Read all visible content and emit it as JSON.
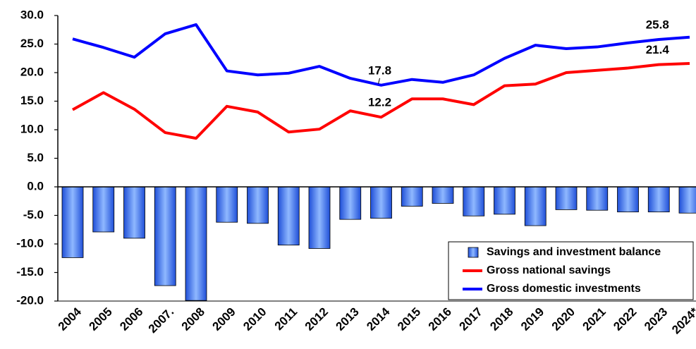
{
  "chart_data": {
    "type": "bar",
    "categories": [
      "2004",
      "2005",
      "2006",
      "2007.",
      "2008",
      "2009",
      "2010",
      "2011",
      "2012",
      "2013",
      "2014",
      "2015",
      "2016",
      "2017",
      "2018",
      "2019",
      "2020",
      "2021",
      "2022",
      "2023",
      "2024*"
    ],
    "series": [
      {
        "name": "Savings and investment balance",
        "type": "bar",
        "color": "#1f4fd8",
        "values": [
          -12.4,
          -7.9,
          -9.0,
          -17.3,
          -19.9,
          -6.2,
          -6.4,
          -10.2,
          -10.8,
          -5.7,
          -5.5,
          -3.4,
          -2.9,
          -5.1,
          -4.8,
          -6.8,
          -4.0,
          -4.1,
          -4.4,
          -4.4,
          -4.6
        ]
      },
      {
        "name": "Gross national savings",
        "type": "line",
        "color": "#ff0000",
        "values": [
          13.5,
          16.5,
          13.6,
          9.5,
          8.5,
          14.1,
          13.1,
          9.6,
          10.1,
          13.3,
          12.2,
          15.4,
          15.4,
          14.4,
          17.7,
          18.0,
          20.0,
          20.4,
          20.8,
          21.4,
          21.6
        ],
        "value_labels": [
          null,
          null,
          null,
          null,
          null,
          null,
          null,
          null,
          null,
          null,
          "12.2",
          null,
          null,
          null,
          null,
          null,
          null,
          null,
          null,
          "21.4",
          null
        ]
      },
      {
        "name": "Gross domestic investments",
        "type": "line",
        "color": "#0000ff",
        "values": [
          25.9,
          24.4,
          22.7,
          26.8,
          28.4,
          20.3,
          19.6,
          19.9,
          21.1,
          19.0,
          17.8,
          18.8,
          18.3,
          19.6,
          22.5,
          24.8,
          24.2,
          24.5,
          25.2,
          25.8,
          26.2
        ],
        "value_labels": [
          null,
          null,
          null,
          null,
          null,
          null,
          null,
          null,
          null,
          null,
          "17.8",
          null,
          null,
          null,
          null,
          null,
          null,
          null,
          null,
          "25.8",
          null
        ]
      }
    ],
    "ylim": [
      -20,
      30
    ],
    "yticks": [
      {
        "value": -20,
        "label": "-20.0"
      },
      {
        "value": -15,
        "label": "-15.0"
      },
      {
        "value": -10,
        "label": "-10.0"
      },
      {
        "value": -5,
        "label": "-5.0"
      },
      {
        "value": 0,
        "label": "0.0"
      },
      {
        "value": 5,
        "label": "5.0"
      },
      {
        "value": 10,
        "label": "10.0"
      },
      {
        "value": 15,
        "label": "15.0"
      },
      {
        "value": 20,
        "label": "20.0"
      },
      {
        "value": 25,
        "label": "25.0"
      },
      {
        "value": 30,
        "label": "30.0"
      }
    ],
    "grid": false,
    "legend": "lower right"
  }
}
